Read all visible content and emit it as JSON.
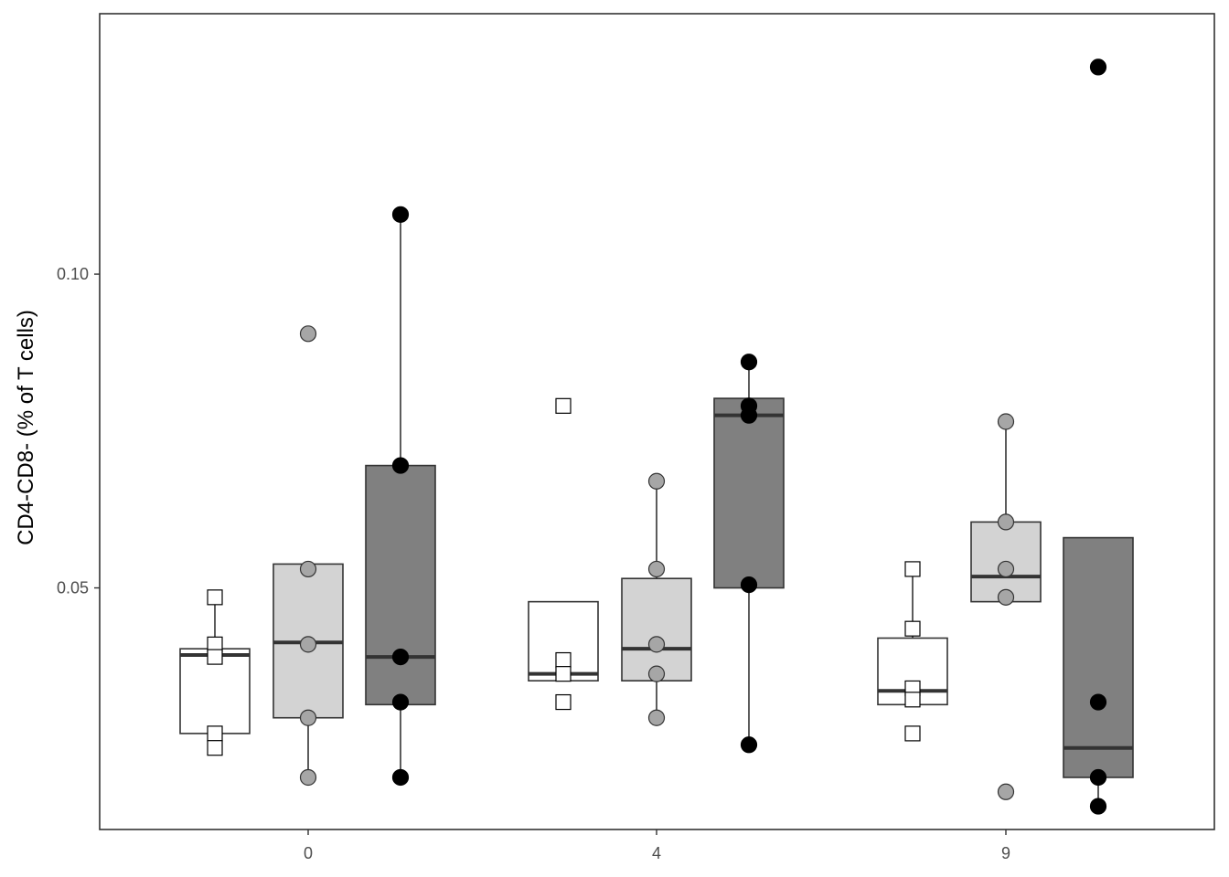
{
  "chart_data": {
    "type": "box",
    "title": "",
    "xlabel": "",
    "ylabel": "CD4-CD8- (% of T cells)",
    "categories": [
      "0",
      "4",
      "9"
    ],
    "yticks": [
      0.05,
      0.1
    ],
    "ytick_labels": [
      "0.05",
      "0.10"
    ],
    "ylim": [
      0.0115,
      0.1415
    ],
    "grid": false,
    "legend": "none",
    "colors": {
      "frame": "#333333",
      "median": "#333333",
      "whisker": "#333333"
    },
    "series": [
      {
        "fill": "#ffffff",
        "point_shape": "square",
        "point_fill": "#ffffff",
        "point_stroke": "#000000",
        "boxes": [
          {
            "category": "0",
            "q1": 0.0268,
            "median": 0.0393,
            "q3": 0.0403,
            "whisker_low": 0.0268,
            "whisker_high": 0.0485
          },
          {
            "category": "4",
            "q1": 0.0352,
            "median": 0.0363,
            "q3": 0.0478,
            "whisker_low": 0.0352,
            "whisker_high": 0.0478
          },
          {
            "category": "9",
            "q1": 0.0314,
            "median": 0.0336,
            "q3": 0.042,
            "whisker_low": 0.0314,
            "whisker_high": 0.053
          }
        ],
        "points": [
          {
            "category": "0",
            "values": [
              0.0485,
              0.041,
              0.039,
              0.0268,
              0.0245
            ]
          },
          {
            "category": "4",
            "values": [
              0.079,
              0.0385,
              0.0363,
              0.0318
            ]
          },
          {
            "category": "9",
            "values": [
              0.053,
              0.0435,
              0.034,
              0.0322,
              0.0268
            ]
          }
        ]
      },
      {
        "fill": "#d3d3d3",
        "point_shape": "circle",
        "point_fill": "#a6a6a6",
        "point_stroke": "#333333",
        "boxes": [
          {
            "category": "0",
            "q1": 0.0293,
            "median": 0.0413,
            "q3": 0.0538,
            "whisker_low": 0.0198,
            "whisker_high": 0.0538
          },
          {
            "category": "4",
            "q1": 0.0352,
            "median": 0.0403,
            "q3": 0.0515,
            "whisker_low": 0.0293,
            "whisker_high": 0.067
          },
          {
            "category": "9",
            "q1": 0.0478,
            "median": 0.0518,
            "q3": 0.0605,
            "whisker_low": 0.0478,
            "whisker_high": 0.0765
          }
        ],
        "points": [
          {
            "category": "0",
            "values": [
              0.0905,
              0.053,
              0.041,
              0.0293,
              0.0198
            ]
          },
          {
            "category": "4",
            "values": [
              0.067,
              0.053,
              0.041,
              0.0363,
              0.0293
            ]
          },
          {
            "category": "9",
            "values": [
              0.0765,
              0.0605,
              0.053,
              0.0485,
              0.0175
            ]
          }
        ]
      },
      {
        "fill": "#808080",
        "point_shape": "circle",
        "point_fill": "#000000",
        "point_stroke": "#000000",
        "boxes": [
          {
            "category": "0",
            "q1": 0.0314,
            "median": 0.039,
            "q3": 0.0695,
            "whisker_low": 0.0198,
            "whisker_high": 0.1095
          },
          {
            "category": "4",
            "q1": 0.05,
            "median": 0.0775,
            "q3": 0.0802,
            "whisker_low": 0.025,
            "whisker_high": 0.086
          },
          {
            "category": "9",
            "q1": 0.0198,
            "median": 0.0245,
            "q3": 0.058,
            "whisker_low": 0.0152,
            "whisker_high": 0.058
          }
        ],
        "points": [
          {
            "category": "0",
            "values": [
              0.1095,
              0.0695,
              0.039,
              0.0318,
              0.0198
            ]
          },
          {
            "category": "4",
            "values": [
              0.086,
              0.079,
              0.0775,
              0.0505,
              0.025
            ]
          },
          {
            "category": "9",
            "values": [
              0.133,
              0.0318,
              0.0198,
              0.0152
            ]
          }
        ]
      }
    ]
  }
}
